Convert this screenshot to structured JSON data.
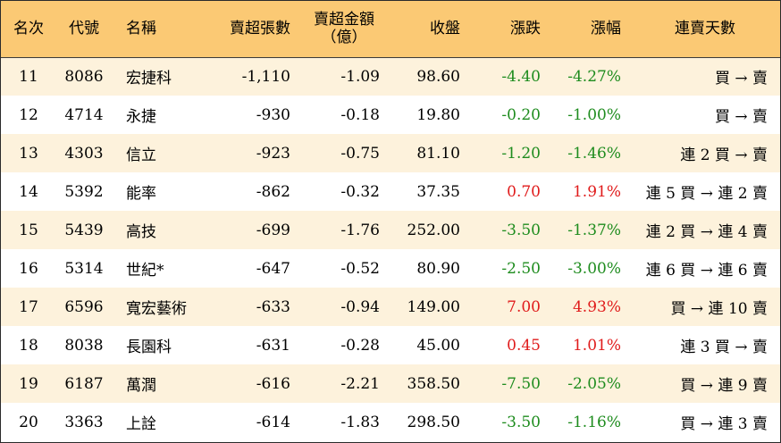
{
  "headers": {
    "rank": "名次",
    "code": "代號",
    "name": "名稱",
    "net_sell_shares": "賣超張數",
    "net_sell_amount_line1": "賣超金額",
    "net_sell_amount_line2": "（億）",
    "close": "收盤",
    "change": "漲跌",
    "change_pct": "漲幅",
    "streak": "連賣天數"
  },
  "colors": {
    "header_bg": "#fbc974",
    "odd_row_bg": "#fdf2dc",
    "negative": "#1e8c1e",
    "positive": "#e01b1b"
  },
  "rows": [
    {
      "rank": "11",
      "code": "8086",
      "name": "宏捷科",
      "shares": "-1,110",
      "amount": "-1.09",
      "close": "98.60",
      "change": "-4.40",
      "pct": "-4.27%",
      "streak": "買 → 賣"
    },
    {
      "rank": "12",
      "code": "4714",
      "name": "永捷",
      "shares": "-930",
      "amount": "-0.18",
      "close": "19.80",
      "change": "-0.20",
      "pct": "-1.00%",
      "streak": "買 → 賣"
    },
    {
      "rank": "13",
      "code": "4303",
      "name": "信立",
      "shares": "-923",
      "amount": "-0.75",
      "close": "81.10",
      "change": "-1.20",
      "pct": "-1.46%",
      "streak": "連 2 買 → 賣"
    },
    {
      "rank": "14",
      "code": "5392",
      "name": "能率",
      "shares": "-862",
      "amount": "-0.32",
      "close": "37.35",
      "change": "0.70",
      "pct": "1.91%",
      "streak": "連 5 買 → 連 2 賣"
    },
    {
      "rank": "15",
      "code": "5439",
      "name": "高技",
      "shares": "-699",
      "amount": "-1.76",
      "close": "252.00",
      "change": "-3.50",
      "pct": "-1.37%",
      "streak": "連 2 買 → 連 4 賣"
    },
    {
      "rank": "16",
      "code": "5314",
      "name": "世紀*",
      "shares": "-647",
      "amount": "-0.52",
      "close": "80.90",
      "change": "-2.50",
      "pct": "-3.00%",
      "streak": "連 6 買 → 連 6 賣"
    },
    {
      "rank": "17",
      "code": "6596",
      "name": "寬宏藝術",
      "shares": "-633",
      "amount": "-0.94",
      "close": "149.00",
      "change": "7.00",
      "pct": "4.93%",
      "streak": "買 → 連 10 賣"
    },
    {
      "rank": "18",
      "code": "8038",
      "name": "長園科",
      "shares": "-631",
      "amount": "-0.28",
      "close": "45.00",
      "change": "0.45",
      "pct": "1.01%",
      "streak": "連 3 買 → 賣"
    },
    {
      "rank": "19",
      "code": "6187",
      "name": "萬潤",
      "shares": "-616",
      "amount": "-2.21",
      "close": "358.50",
      "change": "-7.50",
      "pct": "-2.05%",
      "streak": "買 → 連 9 賣"
    },
    {
      "rank": "20",
      "code": "3363",
      "name": "上詮",
      "shares": "-614",
      "amount": "-1.83",
      "close": "298.50",
      "change": "-3.50",
      "pct": "-1.16%",
      "streak": "買 → 連 3 賣"
    }
  ]
}
